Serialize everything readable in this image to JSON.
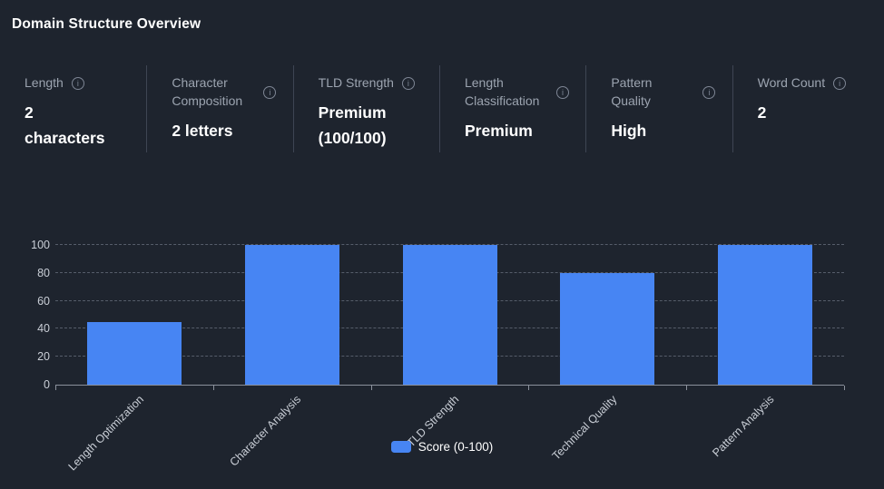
{
  "title": "Domain Structure Overview",
  "stats": [
    {
      "label": "Length",
      "value": "2 characters",
      "icon": "info-icon"
    },
    {
      "label": "Character Composition",
      "value": "2 letters",
      "icon": "info-icon"
    },
    {
      "label": "TLD Strength",
      "value": "Premium (100/100)",
      "icon": "info-icon"
    },
    {
      "label": "Length Classification",
      "value": "Premium",
      "icon": "info-icon"
    },
    {
      "label": "Pattern Quality",
      "value": "High",
      "icon": "info-icon"
    },
    {
      "label": "Word Count",
      "value": "2",
      "icon": "info-icon"
    }
  ],
  "chart_data": {
    "type": "bar",
    "categories": [
      "Length Optimization",
      "Character Analysis",
      "TLD Strength",
      "Technical Quality",
      "Pattern Analysis"
    ],
    "values": [
      45,
      100,
      100,
      80,
      100
    ],
    "title": "",
    "xlabel": "",
    "ylabel": "",
    "ylim": [
      0,
      100
    ],
    "yticks": [
      0,
      20,
      40,
      60,
      80,
      100
    ],
    "grid": true,
    "legend": {
      "label": "Score (0-100)",
      "position": "bottom-center"
    },
    "bar_color": "#4785f3"
  },
  "colors": {
    "background": "#1e242e",
    "accent_blue": "#4785f3",
    "divider": "#3e4553",
    "label_gray": "#9ca4b0",
    "tick_gray": "#c9ced6",
    "gridline": "#565d6a",
    "axis": "#8b919c"
  }
}
